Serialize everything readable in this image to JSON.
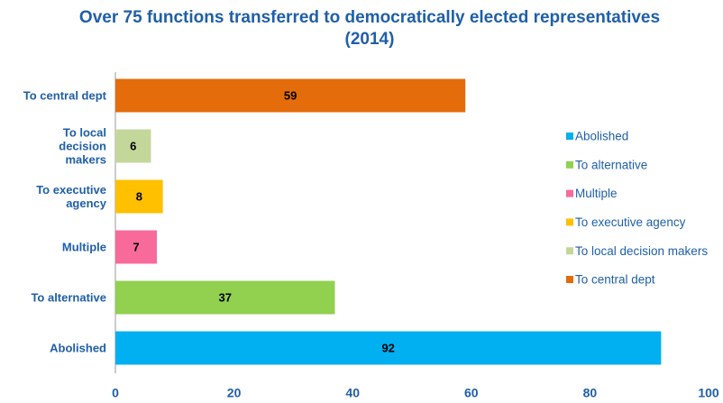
{
  "chart_data": {
    "type": "barh",
    "title": "Over 75 functions transferred to democratically elected representatives (2014)",
    "categories": [
      "Abolished",
      "To alternative",
      "Multiple",
      "To executive agency",
      "To local decision makers",
      "To central dept"
    ],
    "values": [
      92,
      37,
      7,
      8,
      6,
      59
    ],
    "colors": [
      "#00b0f0",
      "#92d050",
      "#f86a9a",
      "#ffc000",
      "#c4d79b",
      "#e46c0a"
    ],
    "xlim": [
      0,
      100
    ],
    "xticks": [
      0,
      20,
      40,
      60,
      80,
      100
    ],
    "legend": "right"
  }
}
